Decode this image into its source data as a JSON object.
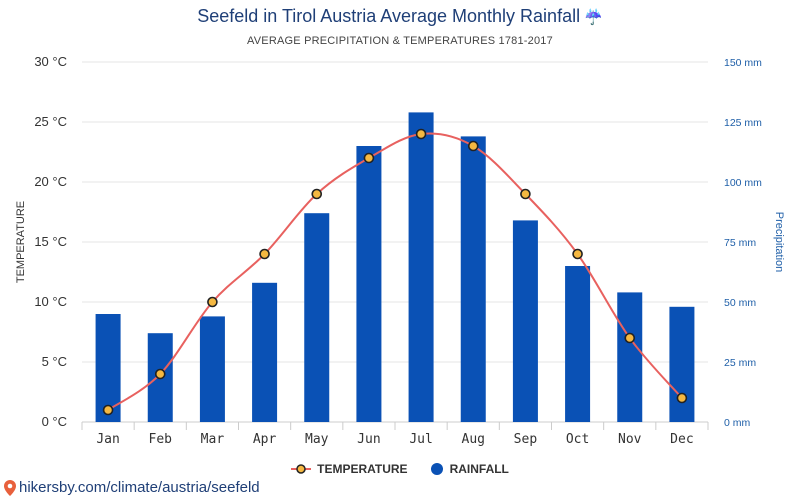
{
  "title": "Seefeld in Tirol Austria Average Monthly Rainfall",
  "title_icon": "☔",
  "subtitle": "AVERAGE PRECIPITATION & TEMPERATURES 1781-2017",
  "source": "hikersby.com/climate/austria/seefeld",
  "colors": {
    "temperature_line": "#e8615f",
    "temperature_point": "#f5b841",
    "rainfall_bar": "#0a51b5",
    "title": "#1f3f77",
    "right_axis": "#1f5fa8"
  },
  "chart_data": {
    "type": "bar",
    "categories": [
      "Jan",
      "Feb",
      "Mar",
      "Apr",
      "May",
      "Jun",
      "Jul",
      "Aug",
      "Sep",
      "Oct",
      "Nov",
      "Dec"
    ],
    "series": [
      {
        "name": "TEMPERATURE",
        "type": "line",
        "axis": "left",
        "values": [
          1,
          4,
          10,
          14,
          19,
          22,
          24,
          23,
          19,
          14,
          7,
          2
        ]
      },
      {
        "name": "RAINFALL",
        "type": "bar",
        "axis": "right",
        "values": [
          45,
          37,
          44,
          58,
          87,
          115,
          129,
          119,
          84,
          65,
          54,
          48
        ]
      }
    ],
    "left_axis": {
      "label": "TEMPERATURE",
      "ticks": [
        "0 °C",
        "5 °C",
        "10 °C",
        "15 °C",
        "20 °C",
        "25 °C",
        "30 °C"
      ],
      "range": [
        0,
        30
      ]
    },
    "right_axis": {
      "label": "Precipitation",
      "ticks": [
        "0 mm",
        "25 mm",
        "50 mm",
        "75 mm",
        "100 mm",
        "125 mm",
        "150 mm"
      ],
      "range": [
        0,
        150
      ]
    },
    "grid": true,
    "legend_position": "bottom"
  }
}
